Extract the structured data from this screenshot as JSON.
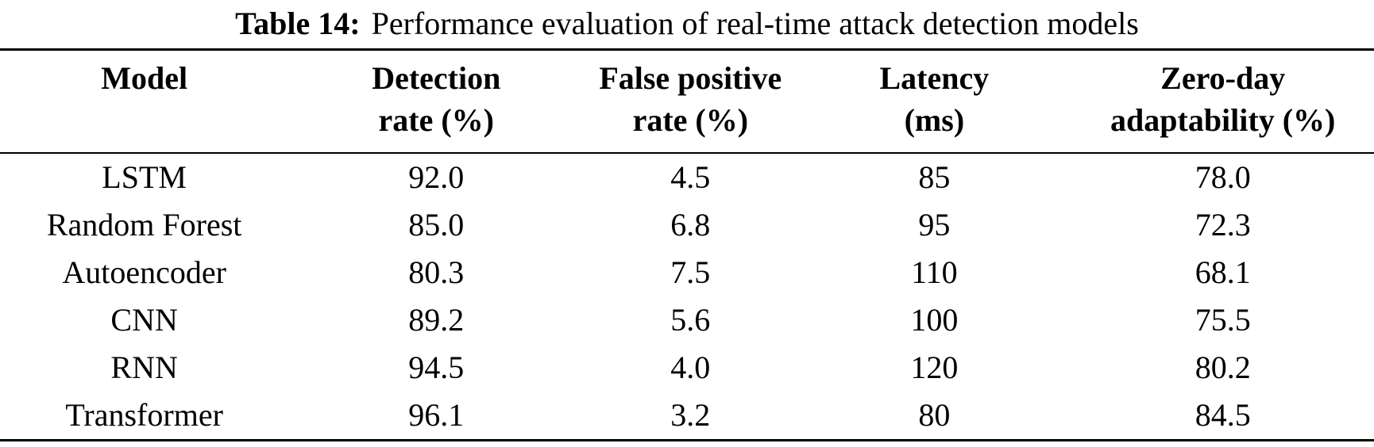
{
  "caption": {
    "label": "Table 14:",
    "text": "Performance evaluation of real-time attack detection models"
  },
  "table": {
    "headers": [
      {
        "line1": "Model",
        "line2": ""
      },
      {
        "line1": "Detection",
        "line2": "rate (%)"
      },
      {
        "line1": "False positive",
        "line2": "rate (%)"
      },
      {
        "line1": "Latency",
        "line2": "(ms)"
      },
      {
        "line1": "Zero-day",
        "line2": "adaptability (%)"
      }
    ],
    "rows": [
      {
        "model": "LSTM",
        "detection_rate": "92.0",
        "false_positive_rate": "4.5",
        "latency": "85",
        "zero_day_adaptability": "78.0"
      },
      {
        "model": "Random Forest",
        "detection_rate": "85.0",
        "false_positive_rate": "6.8",
        "latency": "95",
        "zero_day_adaptability": "72.3"
      },
      {
        "model": "Autoencoder",
        "detection_rate": "80.3",
        "false_positive_rate": "7.5",
        "latency": "110",
        "zero_day_adaptability": "68.1"
      },
      {
        "model": "CNN",
        "detection_rate": "89.2",
        "false_positive_rate": "5.6",
        "latency": "100",
        "zero_day_adaptability": "75.5"
      },
      {
        "model": "RNN",
        "detection_rate": "94.5",
        "false_positive_rate": "4.0",
        "latency": "120",
        "zero_day_adaptability": "80.2"
      },
      {
        "model": "Transformer",
        "detection_rate": "96.1",
        "false_positive_rate": "3.2",
        "latency": "80",
        "zero_day_adaptability": "84.5"
      }
    ]
  },
  "colors": {
    "text": "#000000",
    "background": "#ffffff",
    "rule": "#000000"
  },
  "chart_data": {
    "type": "table",
    "title": "Table 14: Performance evaluation of real-time attack detection models",
    "columns": [
      "Model",
      "Detection rate (%)",
      "False positive rate (%)",
      "Latency (ms)",
      "Zero-day adaptability (%)"
    ],
    "rows": [
      [
        "LSTM",
        92.0,
        4.5,
        85,
        78.0
      ],
      [
        "Random Forest",
        85.0,
        6.8,
        95,
        72.3
      ],
      [
        "Autoencoder",
        80.3,
        7.5,
        110,
        68.1
      ],
      [
        "CNN",
        89.2,
        5.6,
        100,
        75.5
      ],
      [
        "RNN",
        94.5,
        4.0,
        120,
        80.2
      ],
      [
        "Transformer",
        96.1,
        3.2,
        80,
        84.5
      ]
    ]
  }
}
